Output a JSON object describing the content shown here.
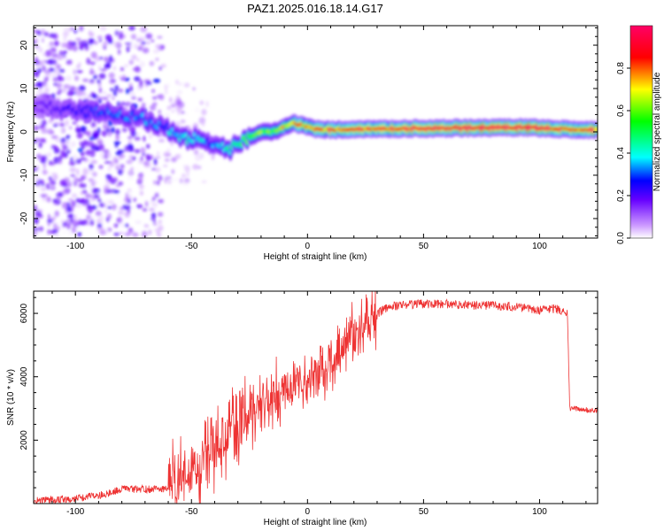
{
  "title": "PAZ1.2025.016.18.14.G17",
  "chart_data": [
    {
      "type": "heatmap",
      "xlabel": "Height of straight line (km)",
      "ylabel": "Frequency (Hz)",
      "xlim": [
        -118,
        125
      ],
      "ylim": [
        -24.5,
        24.5
      ],
      "xticks": [
        -100,
        -50,
        0,
        50,
        100
      ],
      "yticks": [
        -20,
        -10,
        0,
        10,
        20
      ],
      "grid": false,
      "colorbar": {
        "label": "Normalized spectral amplitude",
        "range": [
          0,
          1
        ],
        "ticks": [
          "0.0",
          "0.2",
          "0.4",
          "0.6",
          "0.8"
        ],
        "colormap": [
          "#ffffff",
          "#cc99ff",
          "#6600ff",
          "#0000ff",
          "#00ffff",
          "#00ff00",
          "#ffff00",
          "#ff0000",
          "#ff0066"
        ]
      },
      "ridge": {
        "x": [
          -118,
          -100,
          -90,
          -80,
          -70,
          -62,
          -57,
          -52,
          -47,
          -42,
          -37,
          -33,
          -29,
          -25,
          -20,
          -15,
          -10,
          -6,
          -2,
          5,
          15,
          30,
          50,
          70,
          85,
          95,
          105,
          115,
          125
        ],
        "frequency": [
          6,
          5,
          4.5,
          4,
          3,
          1,
          -0.5,
          -1.5,
          -1.8,
          -2.5,
          -3.5,
          -4,
          -2.5,
          -1.5,
          0,
          0,
          1,
          2,
          1.5,
          0.5,
          0.5,
          0.7,
          0.8,
          0.9,
          1,
          1,
          0.8,
          0.5,
          0.5
        ],
        "amplitude": [
          0.15,
          0.25,
          0.3,
          0.3,
          0.35,
          0.3,
          0.4,
          0.4,
          0.4,
          0.3,
          0.4,
          0.45,
          0.5,
          0.55,
          0.6,
          0.6,
          0.7,
          0.7,
          0.75,
          0.8,
          0.8,
          0.85,
          0.88,
          0.92,
          0.98,
          0.95,
          0.9,
          0.85,
          0.8
        ]
      }
    },
    {
      "type": "line",
      "xlabel": "Height of straight line (km)",
      "ylabel": "SNR (10 * v/v)",
      "xlim": [
        -118,
        125
      ],
      "ylim": [
        0,
        6700
      ],
      "xticks": [
        -100,
        -50,
        0,
        50,
        100
      ],
      "yticks": [
        2000,
        4000,
        6000
      ],
      "grid": false,
      "color": "#ee3333",
      "series": [
        {
          "x": [
            -118,
            -100,
            -90,
            -80,
            -70,
            -60,
            -55,
            -50,
            -45,
            -40,
            -35,
            -30,
            -25,
            -20,
            -15,
            -10,
            -5,
            0,
            5,
            10,
            15,
            20,
            25,
            30,
            35,
            40,
            50,
            60,
            70,
            80,
            90,
            95,
            100,
            105,
            110,
            112,
            113,
            115,
            120,
            125
          ],
          "y": [
            100,
            150,
            250,
            450,
            450,
            450,
            700,
            1000,
            1300,
            1700,
            2100,
            2500,
            3000,
            3200,
            3400,
            3600,
            3800,
            3900,
            4200,
            4500,
            4900,
            5300,
            5700,
            6000,
            6200,
            6250,
            6300,
            6300,
            6250,
            6250,
            6200,
            6150,
            6100,
            6150,
            6100,
            6000,
            3000,
            3000,
            2950,
            2950
          ]
        }
      ]
    }
  ]
}
